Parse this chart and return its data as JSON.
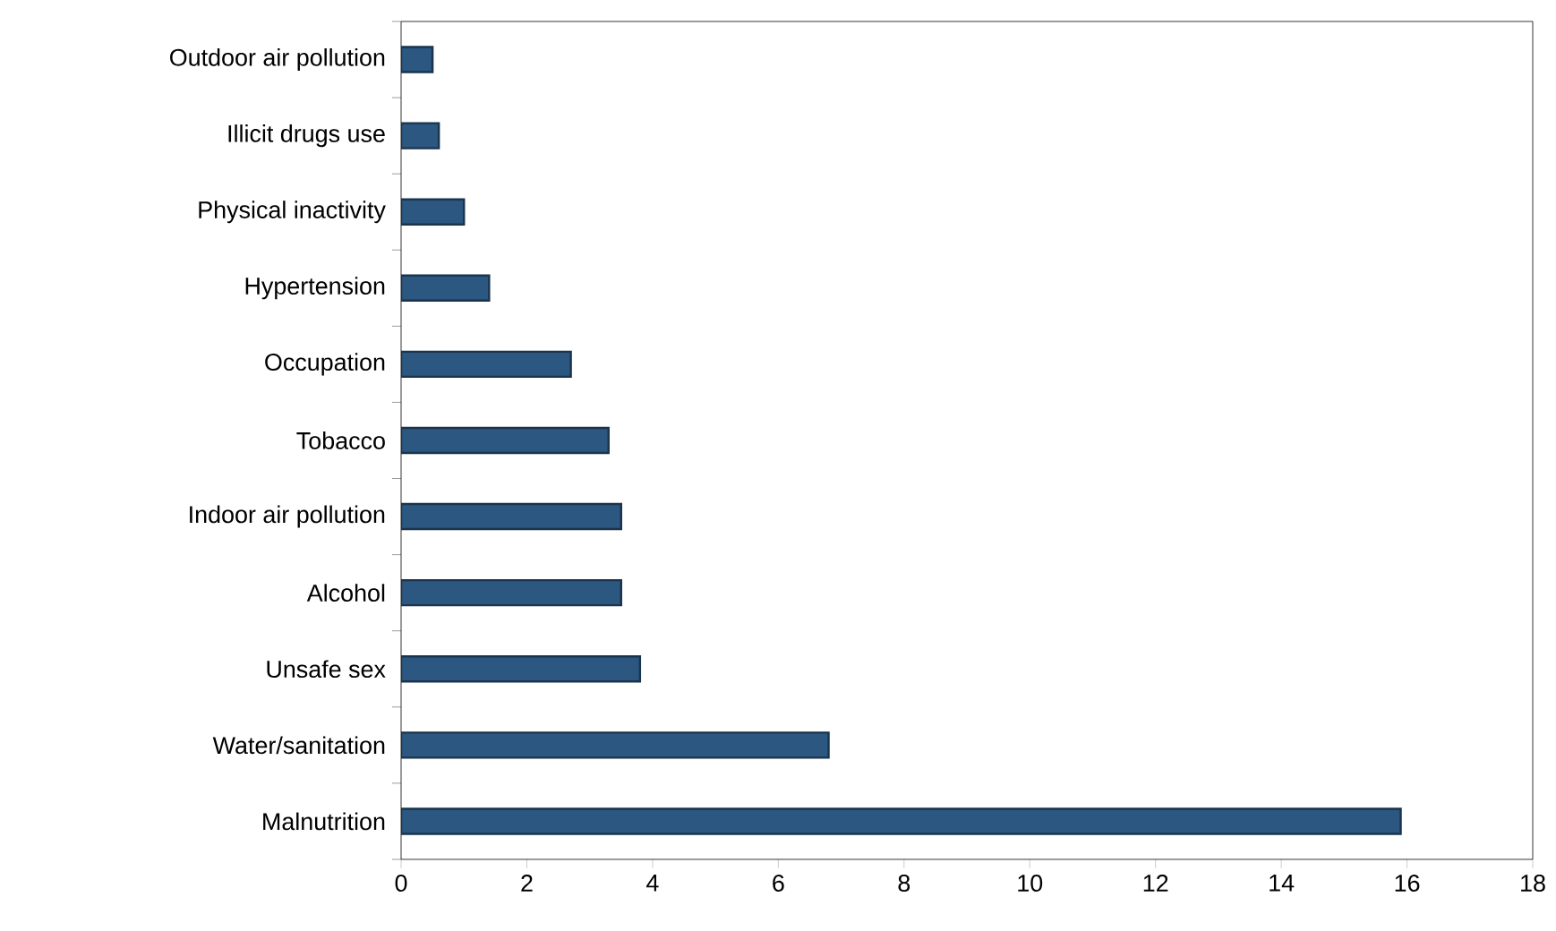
{
  "chart_data": {
    "type": "bar",
    "orientation": "horizontal",
    "categories": [
      "Outdoor air pollution",
      "Illicit drugs use",
      "Physical inactivity",
      "Hypertension",
      "Occupation",
      "Tobacco",
      "Indoor air pollution",
      "Alcohol",
      "Unsafe sex",
      "Water/sanitation",
      "Malnutrition"
    ],
    "values": [
      0.5,
      0.6,
      1.0,
      1.4,
      2.7,
      3.3,
      3.5,
      3.5,
      3.8,
      6.8,
      15.9
    ],
    "color": "#2b5780",
    "xlim": [
      0,
      18
    ],
    "xticks": [
      0,
      2,
      4,
      6,
      8,
      10,
      12,
      14,
      16,
      18
    ],
    "grid": false
  }
}
